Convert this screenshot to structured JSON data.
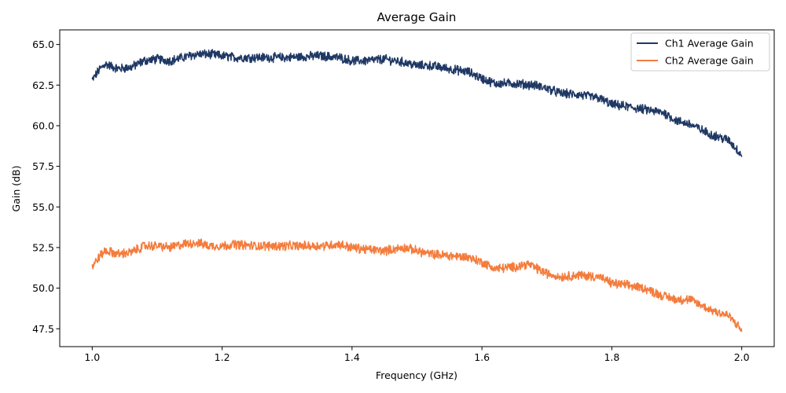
{
  "chart_data": {
    "type": "line",
    "title": "Average Gain",
    "xlabel": "Frequency (GHz)",
    "ylabel": "Gain (dB)",
    "xlim": [
      0.95,
      2.05
    ],
    "ylim": [
      46.4,
      65.9
    ],
    "xticks": [
      1.0,
      1.2,
      1.4,
      1.6,
      1.8,
      2.0
    ],
    "xtick_labels": [
      "1.0",
      "1.2",
      "1.4",
      "1.6",
      "1.8",
      "2.0"
    ],
    "yticks": [
      47.5,
      50.0,
      52.5,
      55.0,
      57.5,
      60.0,
      62.5,
      65.0
    ],
    "ytick_labels": [
      "47.5",
      "50.0",
      "52.5",
      "55.0",
      "57.5",
      "60.0",
      "62.5",
      "65.0"
    ],
    "grid": false,
    "legend_position": "top-right",
    "noise_amplitude_db": 0.25,
    "series": [
      {
        "name": "Ch1 Average Gain",
        "color": "#1f3864",
        "x": [
          1.0,
          1.01,
          1.02,
          1.04,
          1.06,
          1.08,
          1.1,
          1.12,
          1.14,
          1.16,
          1.18,
          1.2,
          1.22,
          1.25,
          1.3,
          1.35,
          1.38,
          1.4,
          1.42,
          1.45,
          1.48,
          1.5,
          1.52,
          1.55,
          1.58,
          1.6,
          1.62,
          1.65,
          1.68,
          1.7,
          1.72,
          1.75,
          1.78,
          1.8,
          1.82,
          1.85,
          1.88,
          1.9,
          1.92,
          1.95,
          1.98,
          2.0
        ],
        "y": [
          62.8,
          63.4,
          63.8,
          63.5,
          63.6,
          64.0,
          64.1,
          64.0,
          64.2,
          64.4,
          64.4,
          64.3,
          64.2,
          64.2,
          64.2,
          64.3,
          64.2,
          64.0,
          64.0,
          64.1,
          63.9,
          63.7,
          63.7,
          63.5,
          63.3,
          62.9,
          62.6,
          62.6,
          62.5,
          62.3,
          62.0,
          61.9,
          61.7,
          61.3,
          61.2,
          61.0,
          60.8,
          60.3,
          60.1,
          59.5,
          59.1,
          58.2
        ]
      },
      {
        "name": "Ch2 Average Gain",
        "color": "#f47c3c",
        "x": [
          1.0,
          1.01,
          1.02,
          1.04,
          1.06,
          1.08,
          1.1,
          1.12,
          1.14,
          1.16,
          1.18,
          1.2,
          1.22,
          1.25,
          1.3,
          1.35,
          1.38,
          1.4,
          1.42,
          1.45,
          1.48,
          1.5,
          1.52,
          1.55,
          1.58,
          1.6,
          1.62,
          1.65,
          1.67,
          1.7,
          1.72,
          1.75,
          1.78,
          1.8,
          1.82,
          1.85,
          1.88,
          1.9,
          1.92,
          1.95,
          1.98,
          2.0
        ],
        "y": [
          51.3,
          51.9,
          52.3,
          52.1,
          52.2,
          52.6,
          52.6,
          52.5,
          52.7,
          52.8,
          52.6,
          52.6,
          52.7,
          52.6,
          52.6,
          52.6,
          52.7,
          52.5,
          52.4,
          52.3,
          52.5,
          52.3,
          52.1,
          52.0,
          51.9,
          51.6,
          51.2,
          51.3,
          51.5,
          50.9,
          50.7,
          50.8,
          50.7,
          50.3,
          50.2,
          50.0,
          49.5,
          49.3,
          49.3,
          48.7,
          48.3,
          47.4
        ]
      }
    ]
  }
}
